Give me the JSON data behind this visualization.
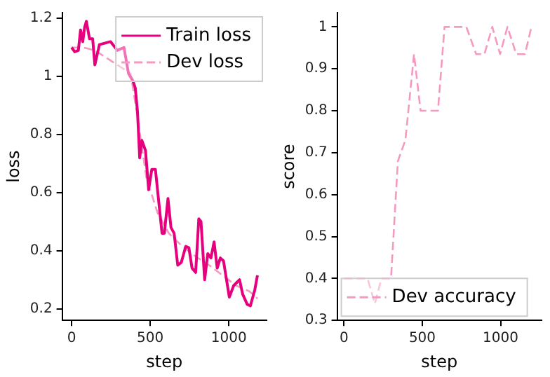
{
  "chart_data": [
    {
      "type": "line",
      "xlabel": "step",
      "ylabel": "loss",
      "xlim": [
        -60,
        1240
      ],
      "ylim": [
        0.16,
        1.22
      ],
      "xticks": [
        0,
        500,
        1000
      ],
      "yticks": [
        0.2,
        0.4,
        0.6,
        0.8,
        1.0,
        1.2
      ],
      "legend": "top right",
      "grid": false,
      "series": [
        {
          "name": "Train loss",
          "color": "#e6007e",
          "line_style": "solid",
          "x": [
            0,
            20,
            43,
            57,
            71,
            83,
            94,
            114,
            134,
            148,
            177,
            248,
            291,
            333,
            362,
            390,
            405,
            419,
            433,
            447,
            470,
            490,
            510,
            533,
            556,
            575,
            590,
            613,
            632,
            652,
            675,
            698,
            726,
            746,
            766,
            789,
            809,
            823,
            846,
            866,
            886,
            906,
            926,
            946,
            966,
            1003,
            1031,
            1068,
            1088,
            1117,
            1137,
            1165,
            1182
          ],
          "values": [
            1.1,
            1.085,
            1.09,
            1.16,
            1.12,
            1.17,
            1.19,
            1.13,
            1.13,
            1.04,
            1.11,
            1.12,
            1.09,
            1.1,
            1.01,
            0.985,
            0.96,
            0.88,
            0.72,
            0.78,
            0.745,
            0.61,
            0.68,
            0.68,
            0.56,
            0.46,
            0.46,
            0.58,
            0.48,
            0.46,
            0.35,
            0.36,
            0.415,
            0.41,
            0.34,
            0.325,
            0.51,
            0.5,
            0.3,
            0.39,
            0.375,
            0.43,
            0.34,
            0.375,
            0.365,
            0.24,
            0.28,
            0.3,
            0.25,
            0.215,
            0.21,
            0.265,
            0.315
          ]
        },
        {
          "name": "Dev loss",
          "color": "#f49ac1",
          "line_style": "dashed",
          "x": [
            0,
            77,
            148,
            376,
            419,
            476,
            547,
            618,
            704,
            789,
            875,
            960,
            1046,
            1131,
            1182
          ],
          "values": [
            1.1,
            1.1,
            1.09,
            1.01,
            0.86,
            0.65,
            0.53,
            0.46,
            0.415,
            0.38,
            0.35,
            0.315,
            0.28,
            0.26,
            0.235
          ]
        }
      ]
    },
    {
      "type": "line",
      "xlabel": "step",
      "ylabel": "score",
      "xlim": [
        -44,
        1262
      ],
      "ylim": [
        0.3,
        1.034
      ],
      "xticks": [
        0,
        500,
        1000
      ],
      "yticks": [
        0.3,
        0.4,
        0.5,
        0.6,
        0.7,
        0.8,
        0.9,
        1.0
      ],
      "legend": "bottom left",
      "grid": false,
      "series": [
        {
          "name": "Dev accuracy",
          "color": "#f49ac1",
          "line_style": "dashed",
          "x": [
            0,
            150,
            197,
            239,
            300,
            344,
            392,
            447,
            489,
            600,
            642,
            781,
            844,
            897,
            947,
            997,
            1044,
            1100,
            1156,
            1197
          ],
          "values": [
            0.4,
            0.4,
            0.34,
            0.4,
            0.4,
            0.68,
            0.73,
            0.935,
            0.8,
            0.8,
            1.0,
            1.0,
            0.935,
            0.935,
            1.0,
            0.935,
            1.0,
            0.935,
            0.935,
            1.0
          ]
        }
      ]
    }
  ]
}
